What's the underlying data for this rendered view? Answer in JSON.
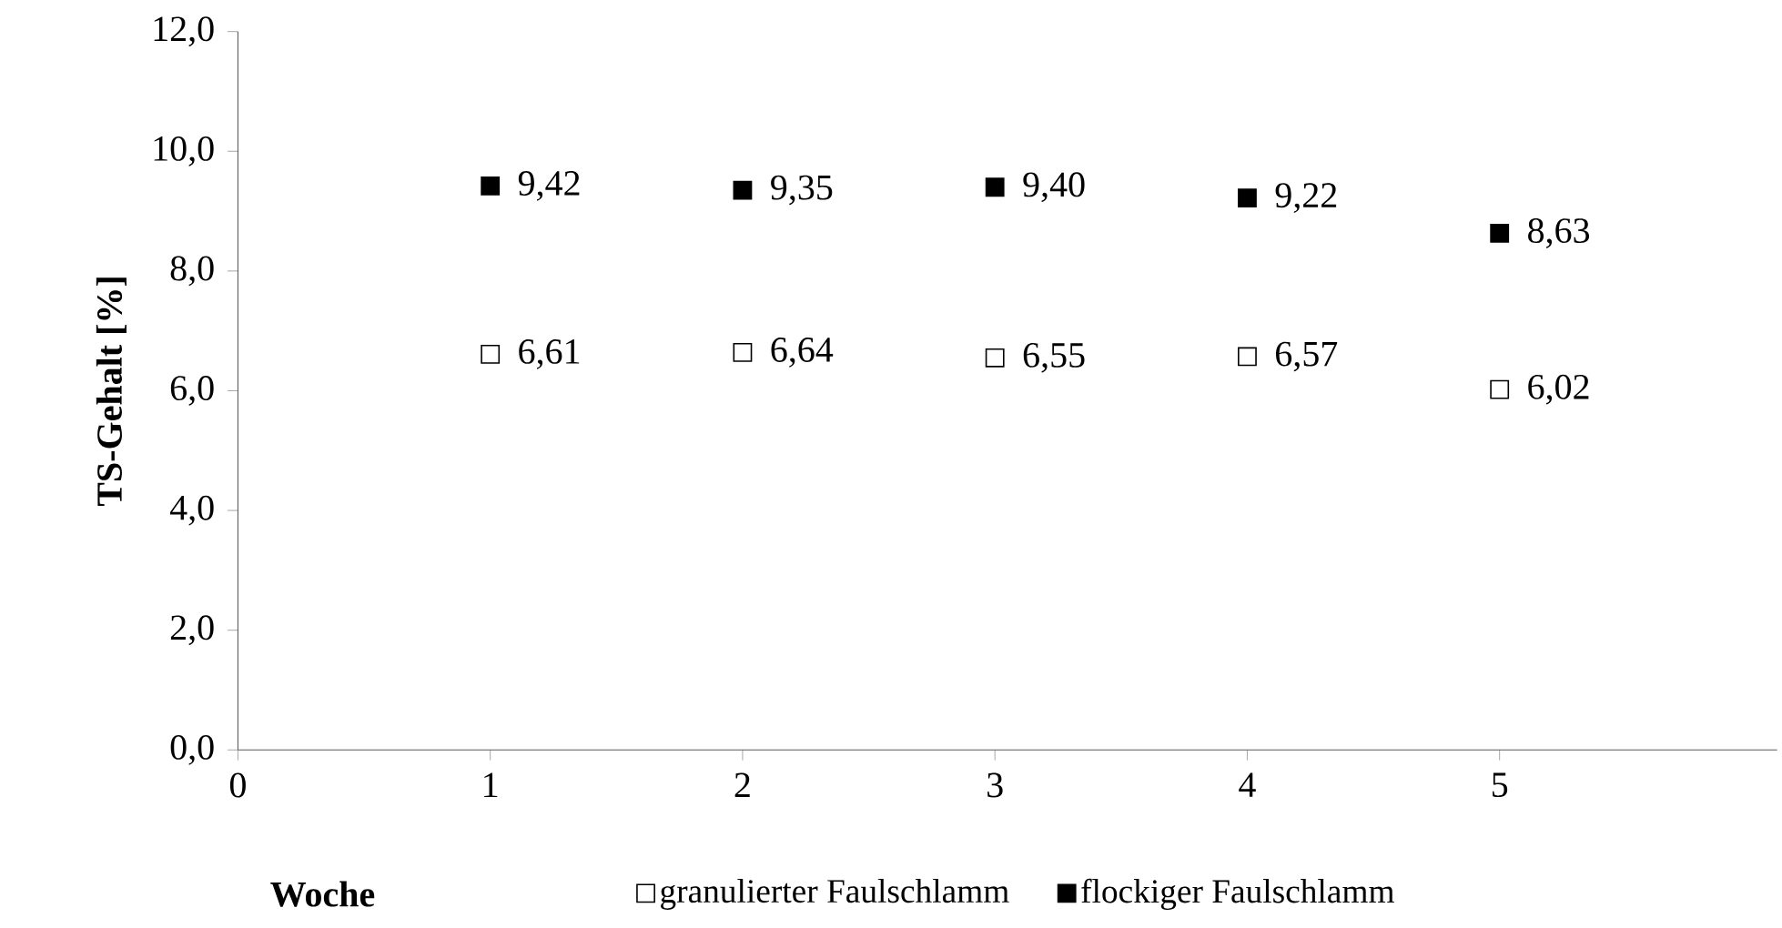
{
  "chart_data": {
    "type": "scatter",
    "xlabel": "Woche",
    "ylabel": "TS-Gehalt [%]",
    "x": [
      1,
      2,
      3,
      4,
      5
    ],
    "series": [
      {
        "name": "granulierter Faulschlamm",
        "color": "#ffffff",
        "values": [
          6.61,
          6.64,
          6.55,
          6.57,
          6.02
        ],
        "value_labels": [
          "6,61",
          "6,64",
          "6,55",
          "6,57",
          "6,02"
        ]
      },
      {
        "name": "flockiger Faulschlamm",
        "color": "#000000",
        "values": [
          9.42,
          9.35,
          9.4,
          9.22,
          8.63
        ],
        "value_labels": [
          "9,42",
          "9,35",
          "9,40",
          "9,22",
          "8,63"
        ]
      }
    ],
    "marker": "square",
    "legend": "bottom",
    "grid": false,
    "xlim": [
      0,
      6.1
    ],
    "xticks": [
      0,
      1,
      2,
      3,
      4,
      5
    ],
    "ylim": [
      0,
      12
    ],
    "yticks": [
      {
        "value": 0,
        "label": "0,0"
      },
      {
        "value": 2,
        "label": "2,0"
      },
      {
        "value": 4,
        "label": "4,0"
      },
      {
        "value": 6,
        "label": "6,0"
      },
      {
        "value": 8,
        "label": "8,0"
      },
      {
        "value": 10,
        "label": "10,0"
      },
      {
        "value": 12,
        "label": "12,0"
      }
    ]
  }
}
